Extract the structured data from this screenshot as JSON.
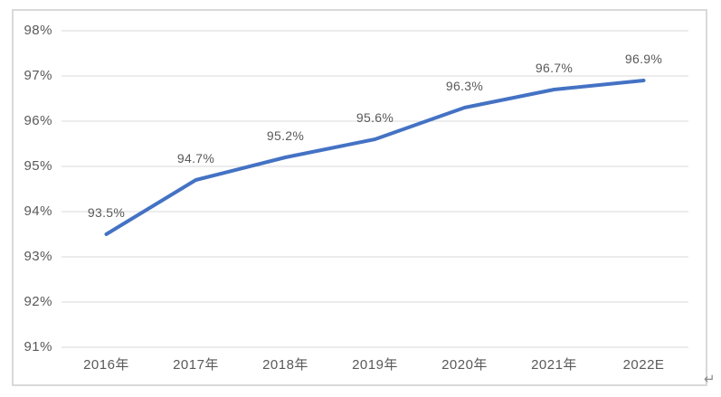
{
  "page": {
    "paragraph_mark": "↵"
  },
  "chart_data": {
    "type": "line",
    "title": "",
    "xlabel": "",
    "ylabel": "",
    "categories": [
      "2016年",
      "2017年",
      "2018年",
      "2019年",
      "2020年",
      "2021年",
      "2022E"
    ],
    "values": [
      93.5,
      94.7,
      95.2,
      95.6,
      96.3,
      96.7,
      96.9
    ],
    "data_labels": [
      "93.5%",
      "94.7%",
      "95.2%",
      "95.6%",
      "96.3%",
      "96.7%",
      "96.9%"
    ],
    "y_tick_labels": [
      "98%",
      "97%",
      "96%",
      "95%",
      "94%",
      "93%",
      "92%",
      "91%"
    ],
    "y_tick_values": [
      98,
      97,
      96,
      95,
      94,
      93,
      92,
      91
    ],
    "ylim": [
      91,
      98
    ],
    "grid": true,
    "legend_position": "none",
    "colors": {
      "line": "#4472C4",
      "gridline": "#D9D9D9",
      "axis_text": "#595959",
      "data_label_text": "#595959",
      "frame_border": "#D9D9D9",
      "paragraph_mark": "#8A8A8A"
    }
  }
}
